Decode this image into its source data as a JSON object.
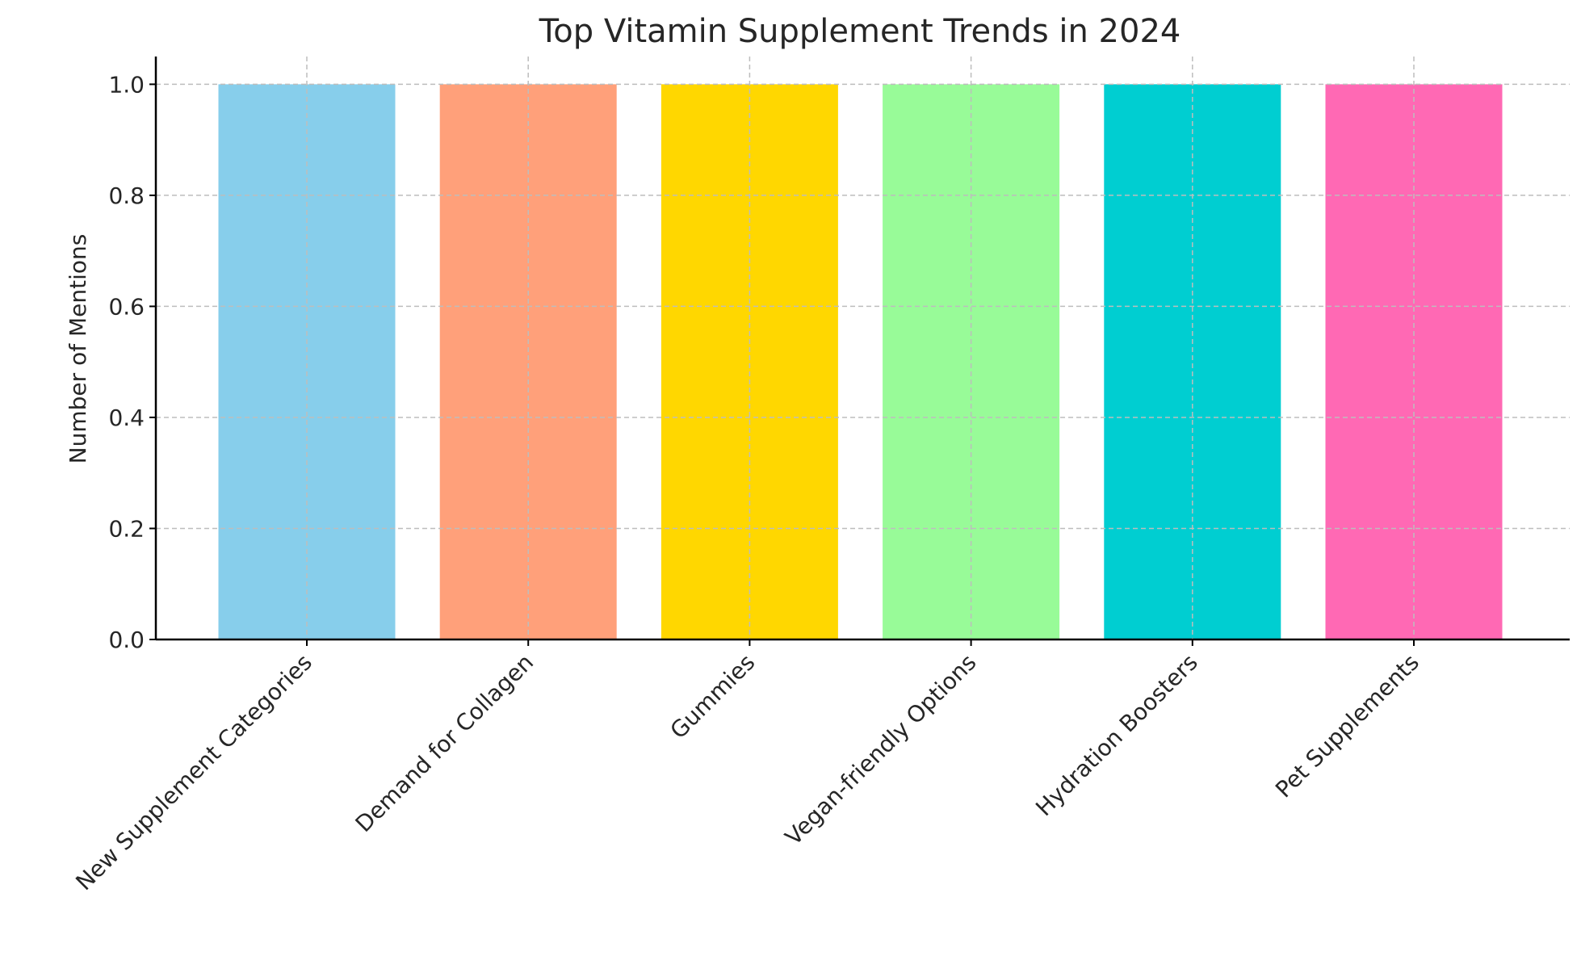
{
  "chart_data": {
    "type": "bar",
    "title": "Top Vitamin Supplement Trends in 2024",
    "xlabel": "",
    "ylabel": "Number of Mentions",
    "categories": [
      "New Supplement Categories",
      "Demand for Collagen",
      "Gummies",
      "Vegan-friendly Options",
      "Hydration Boosters",
      "Pet Supplements"
    ],
    "values": [
      1,
      1,
      1,
      1,
      1,
      1
    ],
    "colors": [
      "#87CEEB",
      "#FFA07A",
      "#FFD700",
      "#98FB98",
      "#00CED1",
      "#FF69B4"
    ],
    "ylim": [
      0,
      1.05
    ],
    "yticks": [
      0.0,
      0.2,
      0.4,
      0.6,
      0.8,
      1.0
    ],
    "ytick_labels": [
      "0.0",
      "0.2",
      "0.4",
      "0.6",
      "0.8",
      "1.0"
    ],
    "grid": true
  }
}
